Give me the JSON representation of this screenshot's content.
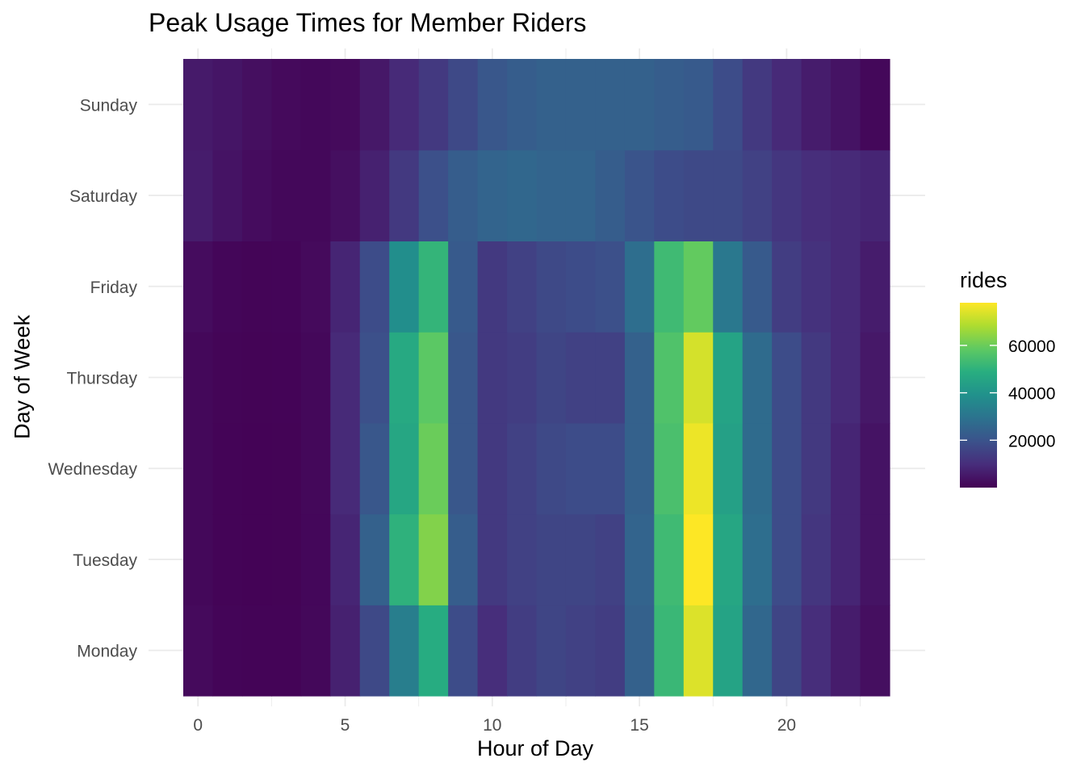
{
  "chart_data": {
    "type": "heatmap",
    "title": "Peak Usage Times for Member Riders",
    "xlabel": "Hour of Day",
    "ylabel": "Day of Week",
    "x": [
      0,
      1,
      2,
      3,
      4,
      5,
      6,
      7,
      8,
      9,
      10,
      11,
      12,
      13,
      14,
      15,
      16,
      17,
      18,
      19,
      20,
      21,
      22,
      23
    ],
    "x_ticks": [
      0,
      5,
      10,
      15,
      20
    ],
    "x_tick_labels": [
      "0",
      "5",
      "10",
      "15",
      "20"
    ],
    "y_categories": [
      "Monday",
      "Tuesday",
      "Wednesday",
      "Thursday",
      "Friday",
      "Saturday",
      "Sunday"
    ],
    "xlim": [
      -0.5,
      23.5
    ],
    "grid": true,
    "legend": {
      "title": "rides",
      "position": "right",
      "min": 0,
      "max": 78000,
      "ticks": [
        20000,
        40000,
        60000
      ],
      "tick_labels": [
        "20000",
        "40000",
        "60000"
      ]
    },
    "colorscale": "viridis",
    "values": [
      [
        2000,
        900,
        700,
        700,
        1500,
        7000,
        17000,
        33000,
        48000,
        18000,
        10000,
        14000,
        16000,
        15000,
        14000,
        24000,
        52000,
        74000,
        45000,
        26000,
        16000,
        10000,
        6000,
        3000
      ],
      [
        1500,
        700,
        500,
        600,
        1400,
        8000,
        24000,
        50000,
        63000,
        23000,
        13000,
        15000,
        16000,
        16000,
        15000,
        25000,
        53000,
        78000,
        46000,
        28000,
        18000,
        12000,
        8000,
        4000
      ],
      [
        1600,
        700,
        500,
        600,
        1500,
        9000,
        21000,
        46000,
        60000,
        21000,
        13000,
        15000,
        17000,
        18000,
        18000,
        24000,
        55000,
        76000,
        44000,
        27000,
        18000,
        13000,
        8000,
        4000
      ],
      [
        1600,
        800,
        600,
        700,
        1600,
        9000,
        19000,
        47000,
        58000,
        21000,
        13000,
        14000,
        16000,
        15000,
        15000,
        24000,
        56000,
        73000,
        45000,
        27000,
        18000,
        13000,
        9000,
        5000
      ],
      [
        2500,
        1200,
        800,
        900,
        2000,
        8000,
        18000,
        38000,
        51000,
        22000,
        13000,
        15000,
        17000,
        18000,
        19000,
        28000,
        53000,
        59000,
        31000,
        22000,
        14000,
        11000,
        9000,
        6000
      ],
      [
        6000,
        4000,
        2500,
        1500,
        1500,
        3000,
        7000,
        13000,
        19000,
        23000,
        25000,
        26000,
        25000,
        25000,
        23000,
        20000,
        18000,
        17000,
        17000,
        15000,
        12000,
        10000,
        9000,
        8000
      ],
      [
        5500,
        4500,
        3000,
        2000,
        1500,
        2000,
        5000,
        9000,
        13000,
        17000,
        21000,
        23000,
        24000,
        24000,
        24000,
        24000,
        23000,
        22000,
        18000,
        13000,
        9000,
        6000,
        4000,
        1500
      ]
    ],
    "colors": {
      "grid": "#ebebeb",
      "tick_text": "#4d4d4d",
      "axis_title": "#000000"
    }
  }
}
